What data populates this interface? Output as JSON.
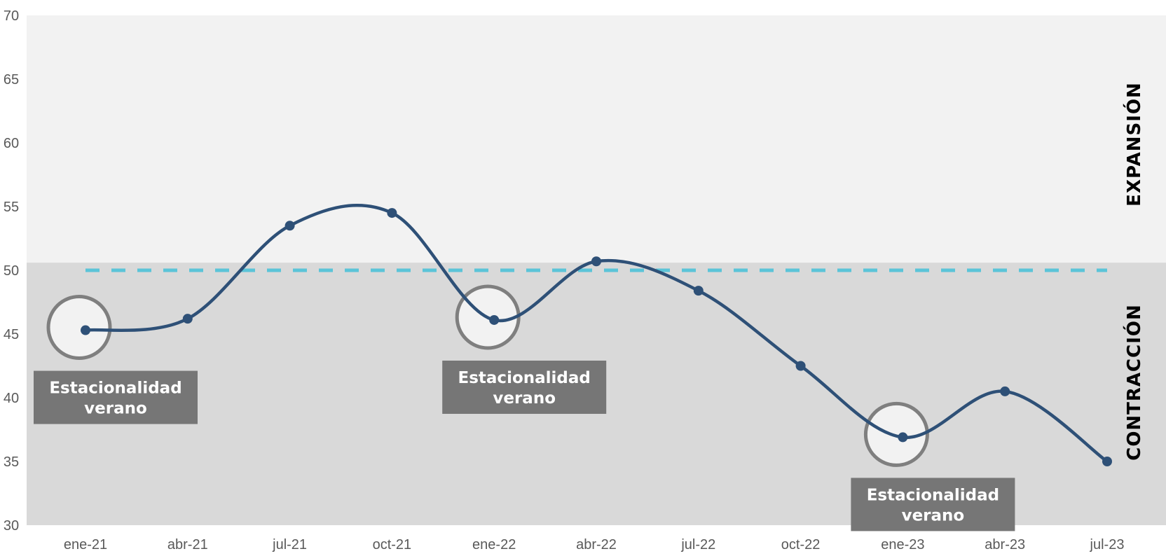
{
  "chart_data": {
    "type": "line",
    "x": [
      "ene-21",
      "abr-21",
      "jul-21",
      "oct-21",
      "ene-22",
      "abr-22",
      "jul-22",
      "oct-22",
      "ene-23",
      "abr-23",
      "jul-23"
    ],
    "series": [
      {
        "values": [
          45.3,
          46.2,
          53.5,
          54.5,
          46.1,
          50.7,
          48.4,
          42.5,
          36.9,
          40.5,
          35.0
        ],
        "color": "#2e5077"
      }
    ],
    "reference_line": {
      "value": 50,
      "style": "dashed",
      "color": "#5bc4d8"
    },
    "ylim": [
      30,
      70
    ],
    "yticks": [
      30,
      35,
      40,
      45,
      50,
      55,
      60,
      65,
      70
    ],
    "zones": [
      {
        "label": "EXPANSIÓN",
        "from": 50.6,
        "to": 70,
        "color": "#f2f2f2"
      },
      {
        "label": "CONTRACCIÓN",
        "from": 30,
        "to": 50.6,
        "color": "#d9d9d9"
      }
    ],
    "annotations": [
      {
        "point_index": 0,
        "line1": "Estacionalidad",
        "line2": "verano"
      },
      {
        "point_index": 4,
        "line1": "Estacionalidad",
        "line2": "verano"
      },
      {
        "point_index": 8,
        "line1": "Estacionalidad",
        "line2": "verano"
      }
    ],
    "grid": false,
    "legend": "none"
  }
}
